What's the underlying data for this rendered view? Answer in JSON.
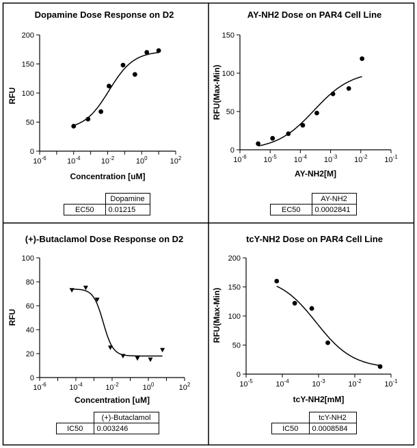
{
  "chart_data": [
    {
      "type": "scatter",
      "title": "Dopamine Dose Response on D2",
      "xlabel": "Concentration [uM]",
      "ylabel": "RFU",
      "x_scale": "log",
      "xlim": [
        1e-06,
        100
      ],
      "ylim": [
        0,
        200
      ],
      "x_ticks": [
        1e-06,
        0.0001,
        0.01,
        1,
        100
      ],
      "x_tick_labels": [
        {
          "b": "10",
          "e": "-6"
        },
        {
          "b": "10",
          "e": "-4"
        },
        {
          "b": "10",
          "e": "-2"
        },
        {
          "b": "10",
          "e": "0"
        },
        {
          "b": "10",
          "e": "2"
        }
      ],
      "y_ticks": [
        0,
        50,
        100,
        150,
        200
      ],
      "marker": "circle",
      "points": [
        [
          0.0001,
          43
        ],
        [
          0.0007,
          55
        ],
        [
          0.004,
          68
        ],
        [
          0.012,
          112
        ],
        [
          0.08,
          148
        ],
        [
          0.4,
          132
        ],
        [
          2,
          170
        ],
        [
          10,
          173
        ]
      ],
      "fit": {
        "model": "sigmoid",
        "bottom": 37,
        "top": 172,
        "logEC50": -1.915,
        "hill": 0.6
      },
      "table": {
        "column": "Dopamine",
        "row_label": "EC50",
        "value": "0.01215"
      }
    },
    {
      "type": "scatter",
      "title": "AY-NH2 Dose on PAR4 Cell Line",
      "xlabel": "AY-NH2[M]",
      "ylabel": "RFU(Max-Min)",
      "x_scale": "log",
      "xlim": [
        1e-06,
        0.1
      ],
      "ylim": [
        0,
        150
      ],
      "x_ticks": [
        1e-06,
        1e-05,
        0.0001,
        0.001,
        0.01,
        0.1
      ],
      "x_tick_labels": [
        {
          "b": "10",
          "e": "-6"
        },
        {
          "b": "10",
          "e": "-5"
        },
        {
          "b": "10",
          "e": "-4"
        },
        {
          "b": "10",
          "e": "-3"
        },
        {
          "b": "10",
          "e": "-2"
        },
        {
          "b": "10",
          "e": "-1"
        }
      ],
      "y_ticks": [
        0,
        50,
        100,
        150
      ],
      "marker": "circle",
      "points": [
        [
          4e-06,
          8
        ],
        [
          1.2e-05,
          15
        ],
        [
          4e-05,
          21
        ],
        [
          0.00012,
          32
        ],
        [
          0.00035,
          48
        ],
        [
          0.0012,
          73
        ],
        [
          0.004,
          80
        ],
        [
          0.011,
          119
        ]
      ],
      "fit": {
        "model": "sigmoid",
        "bottom": 0,
        "top": 103,
        "logEC50": -3.547,
        "hill": 0.7
      },
      "table": {
        "column": "AY-NH2",
        "row_label": "EC50",
        "value": "0.0002841"
      }
    },
    {
      "type": "scatter",
      "title": "(+)-Butaclamol Dose Response on D2",
      "xlabel": "Concentration [uM]",
      "ylabel": "RFU",
      "x_scale": "log",
      "xlim": [
        1e-06,
        100
      ],
      "ylim": [
        0,
        100
      ],
      "x_ticks": [
        1e-06,
        0.0001,
        0.01,
        1,
        100
      ],
      "x_tick_labels": [
        {
          "b": "10",
          "e": "-6"
        },
        {
          "b": "10",
          "e": "-4"
        },
        {
          "b": "10",
          "e": "-2"
        },
        {
          "b": "10",
          "e": "0"
        },
        {
          "b": "10",
          "e": "2"
        }
      ],
      "y_ticks": [
        0,
        20,
        40,
        60,
        80,
        100
      ],
      "marker": "triangle-down",
      "points": [
        [
          6e-05,
          73
        ],
        [
          0.00035,
          75
        ],
        [
          0.0015,
          65
        ],
        [
          0.008,
          25
        ],
        [
          0.04,
          18
        ],
        [
          0.25,
          16
        ],
        [
          1.3,
          15
        ],
        [
          6,
          23
        ]
      ],
      "fit": {
        "model": "sigmoid",
        "bottom": 18,
        "top": 74,
        "logEC50": -2.489,
        "hill": -1.6
      },
      "table": {
        "column": "(+)-Butaclamol",
        "row_label": "IC50",
        "value": "0.003246"
      }
    },
    {
      "type": "scatter",
      "title": "tcY-NH2 Dose on PAR4 Cell Line",
      "xlabel": "tcY-NH2[mM]",
      "ylabel": "RFU(Max-Min)",
      "x_scale": "log",
      "xlim": [
        1e-05,
        0.1
      ],
      "ylim": [
        0,
        200
      ],
      "x_ticks": [
        1e-05,
        0.0001,
        0.001,
        0.01,
        0.1
      ],
      "x_tick_labels": [
        {
          "b": "10",
          "e": "-5"
        },
        {
          "b": "10",
          "e": "-4"
        },
        {
          "b": "10",
          "e": "-3"
        },
        {
          "b": "10",
          "e": "-2"
        },
        {
          "b": "10",
          "e": "-1"
        }
      ],
      "y_ticks": [
        0,
        50,
        100,
        150,
        200
      ],
      "marker": "circle",
      "points": [
        [
          7e-05,
          160
        ],
        [
          0.00022,
          122
        ],
        [
          0.00065,
          113
        ],
        [
          0.0018,
          54
        ],
        [
          0.05,
          13
        ]
      ],
      "fit": {
        "model": "sigmoid",
        "bottom": 10,
        "top": 168,
        "logEC50": -3.066,
        "hill": -0.85
      },
      "table": {
        "column": "tcY-NH2",
        "row_label": "IC50",
        "value": "0.0008584"
      }
    }
  ]
}
